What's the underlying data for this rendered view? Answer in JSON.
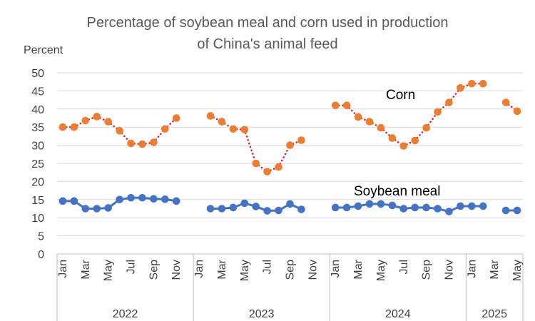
{
  "chart_data": {
    "type": "line",
    "title": [
      "Percentage of soybean meal and corn used in production",
      "of China's animal feed"
    ],
    "ylabel": "Percent",
    "ylim": [
      0,
      50
    ],
    "yticks": [
      0,
      5,
      10,
      15,
      20,
      25,
      30,
      35,
      40,
      45,
      50
    ],
    "grid": true,
    "month_count": 41,
    "tick_labels": [
      {
        "label": "Jan",
        "month": 0
      },
      {
        "label": "Mar",
        "month": 2
      },
      {
        "label": "May",
        "month": 4
      },
      {
        "label": "Jul",
        "month": 6
      },
      {
        "label": "Sep",
        "month": 8
      },
      {
        "label": "Nov",
        "month": 10
      },
      {
        "label": "Jan",
        "month": 12
      },
      {
        "label": "Mar",
        "month": 14
      },
      {
        "label": "May",
        "month": 16
      },
      {
        "label": "Jul",
        "month": 18
      },
      {
        "label": "Sep",
        "month": 20
      },
      {
        "label": "Nov",
        "month": 22
      },
      {
        "label": "Jan",
        "month": 24
      },
      {
        "label": "Mar",
        "month": 26
      },
      {
        "label": "May",
        "month": 28
      },
      {
        "label": "Jul",
        "month": 30
      },
      {
        "label": "Sep",
        "month": 32
      },
      {
        "label": "Nov",
        "month": 34
      },
      {
        "label": "Jan",
        "month": 36
      },
      {
        "label": "Mar",
        "month": 38
      },
      {
        "label": "May",
        "month": 40
      }
    ],
    "years": [
      {
        "label": "2022",
        "start": 0,
        "end": 12
      },
      {
        "label": "2023",
        "start": 12,
        "end": 24
      },
      {
        "label": "2024",
        "start": 24,
        "end": 36
      },
      {
        "label": "2025",
        "start": 36,
        "end": 41
      }
    ],
    "series": [
      {
        "name": "Corn",
        "label": "Corn",
        "color": "#ED7D31",
        "line_style": "dotted",
        "line_color": "#E8141B",
        "values": [
          35,
          35,
          36.8,
          37.9,
          36.5,
          34,
          30.5,
          30.3,
          30.8,
          34.5,
          37.5,
          null,
          null,
          38.1,
          36.5,
          34.5,
          34.3,
          25,
          22.7,
          24,
          30,
          31.4,
          null,
          null,
          41,
          41,
          37.8,
          36.5,
          34.8,
          32,
          29.8,
          31.3,
          34.8,
          39.2,
          41.8,
          45.8,
          47,
          47,
          null,
          41.8,
          39.4
        ]
      },
      {
        "name": "Soybean meal",
        "label": "Soybean meal",
        "color": "#4472C4",
        "line_style": "solid",
        "line_color": "#4472C4",
        "values": [
          14.6,
          14.6,
          12.5,
          12.5,
          12.7,
          15,
          15.5,
          15.5,
          15.2,
          15.1,
          14.6,
          null,
          null,
          12.5,
          12.5,
          12.8,
          14,
          13.1,
          11.9,
          12,
          13.8,
          12.3,
          null,
          null,
          12.8,
          12.8,
          13.2,
          13.8,
          13.8,
          13.4,
          12.5,
          12.8,
          12.8,
          12.5,
          11.7,
          13.2,
          13.2,
          13.2,
          null,
          12,
          12
        ]
      }
    ]
  }
}
